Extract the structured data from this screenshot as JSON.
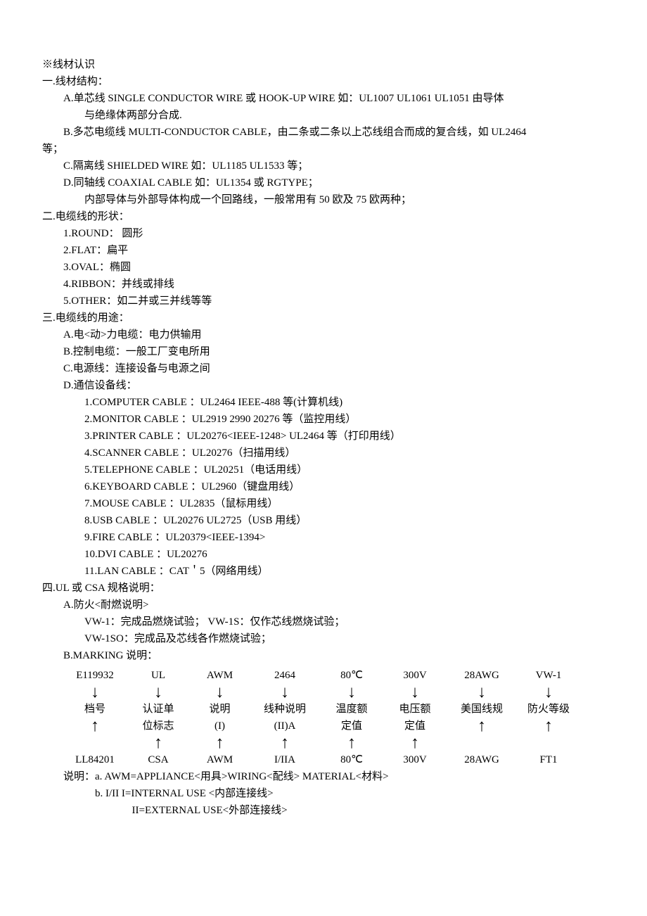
{
  "heading": "※线材认识",
  "s1": {
    "title": "一.线材结构：",
    "a": "A.单芯线 SINGLE CONDUCTOR WIRE 或 HOOK-UP WIRE 如：UL1007 UL1061 UL1051 由导体",
    "a2": "与绝缘体两部分合成.",
    "b": "B.多芯电缆线 MULTI-CONDUCTOR CABLE，由二条或二条以上芯线组合而成的复合线，如 UL2464",
    "b2": "等；",
    "c": "C.隔离线 SHIELDED WIRE 如：UL1185 UL1533 等；",
    "d": "D.同轴线 COAXIAL CABLE 如：UL1354 或 RGTYPE；",
    "d2": "内部导体与外部导体构成一个回路线，一般常用有 50 欧及 75 欧两种；"
  },
  "s2": {
    "title": "二.电缆线的形状：",
    "items": [
      "1.ROUND： 圆形",
      "2.FLAT：扁平",
      "3.OVAL：椭圆",
      "4.RIBBON：并线或排线",
      "5.OTHER：如二并或三并线等等"
    ]
  },
  "s3": {
    "title": "三.电缆线的用途：",
    "a": "A.电<动>力电缆：电力供输用",
    "b": "B.控制电缆：一般工厂变电所用",
    "c": "C.电源线：连接设备与电源之间",
    "d": "D.通信设备线：",
    "d_items": [
      "1.COMPUTER CABLE ：UL2464 IEEE-488 等(计算机线)",
      "2.MONITOR CABLE ：UL2919 2990 20276 等（监控用线）",
      "3.PRINTER CABLE ：UL20276<IEEE-1248> UL2464 等（打印用线）",
      "4.SCANNER CABLE ：UL20276（扫描用线）",
      "5.TELEPHONE CABLE ：UL20251（电话用线）",
      "6.KEYBOARD CABLE ：UL2960（键盘用线）",
      "7.MOUSE CABLE ：UL2835（鼠标用线）",
      "8.USB CABLE ：UL20276 UL2725（USB 用线）",
      "9.FIRE CABLE ：UL20379<IEEE-1394>",
      "10.DVI CABLE ：UL20276",
      "11.LAN CABLE ：CAT＇5（网络用线）"
    ]
  },
  "s4": {
    "title": "四.UL 或 CSA 规格说明：",
    "a": "A.防火<耐燃说明>",
    "a1": "VW-1：完成品燃烧试验；  VW-1S：仅作芯线燃烧试验；",
    "a2": "VW-1SO：完成品及芯线各作燃烧试验；",
    "b": "B.MARKING 说明：",
    "marking": {
      "top": [
        "E119932",
        "UL",
        "AWM",
        "2464",
        "80℃",
        "300V",
        "28AWG",
        "VW-1"
      ],
      "mid1": [
        "档号",
        "认证单",
        "说明",
        "线种说明",
        "温度额",
        "电压额",
        "美国线规",
        "防火等级"
      ],
      "mid2": [
        "",
        "位标志",
        "(I)",
        "(II)A",
        "定值",
        "定值",
        "",
        ""
      ],
      "bot": [
        "LL84201",
        "CSA",
        "AWM",
        "I/IIA",
        "80℃",
        "300V",
        "28AWG",
        "FT1"
      ]
    },
    "note1": "说明：a. AWM=APPLIANCE<用具>WIRING<配线> MATERIAL<材料>",
    "note2": "b. I/II  I=INTERNAL USE <内部连接线>",
    "note3": "II=EXTERNAL USE<外部连接线>"
  }
}
